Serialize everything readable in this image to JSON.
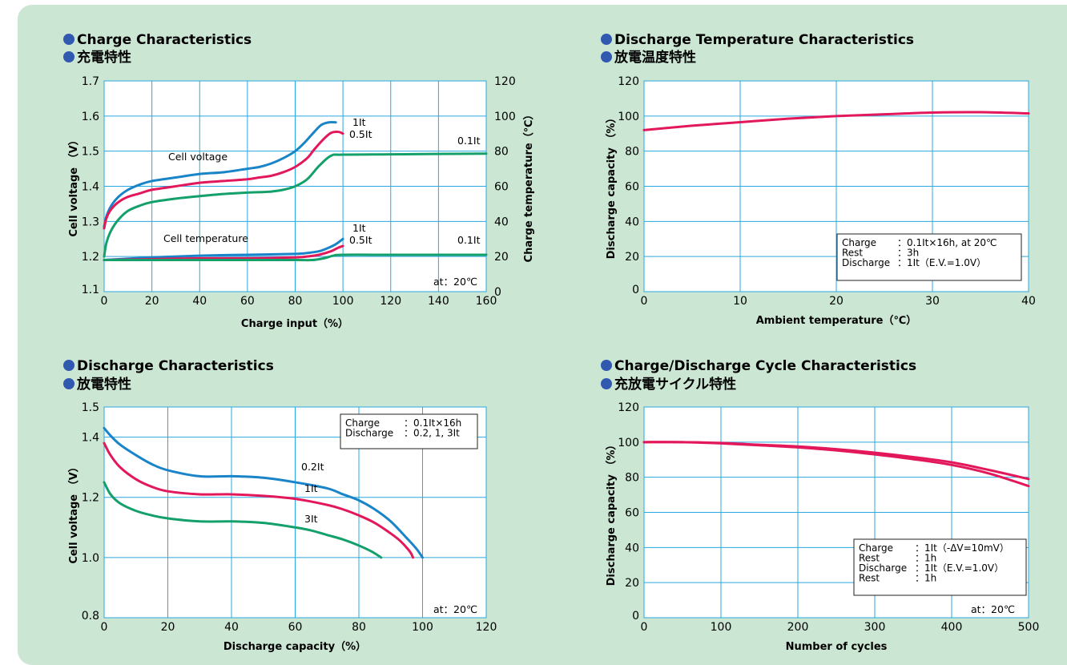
{
  "colors": {
    "panel_bg": "#cbe6d3",
    "plot_bg": "#ffffff",
    "grid": "#2aa8e0",
    "bullet": "#3259b0",
    "series_1it": "#1a84c8",
    "series_05it": "#e3185a",
    "series_01it": "#14a06a",
    "series_02it": "#1a84c8",
    "series_3it": "#14a06a",
    "series_red": "#e3185a"
  },
  "chart_data": [
    {
      "id": "charge",
      "type": "line",
      "title": "Charge Characteristics",
      "subtitle": "充電特性",
      "xlabel": "Charge input（%）",
      "ylabel": "Cell voltage （V）",
      "y2label": "Charge temperature（℃）",
      "xlim": [
        0,
        160
      ],
      "ylim": [
        1.1,
        1.7
      ],
      "y2lim": [
        0,
        120
      ],
      "xticks": [
        "0",
        "20",
        "40",
        "60",
        "80",
        "100",
        "120",
        "140",
        "160"
      ],
      "yticks": [
        "1.1",
        "1.2",
        "1.3",
        "1.4",
        "1.5",
        "1.6",
        "1.7"
      ],
      "y2ticks": [
        "0",
        "20",
        "40",
        "60",
        "80",
        "100",
        "120"
      ],
      "grid": true,
      "labels": {
        "cell_voltage": "Cell voltage",
        "cell_temperature": "Cell temperature",
        "v_1it": "1It",
        "v_05it": "0.5It",
        "v_01it": "0.1It",
        "t_1it": "1It",
        "t_05it": "0.5It",
        "t_01it": "0.1It",
        "at": "at：20℃"
      },
      "series": [
        {
          "name": "1It",
          "axis": "voltage",
          "color": "#1a84c8",
          "x": [
            0,
            1,
            3,
            6,
            10,
            15,
            20,
            30,
            40,
            50,
            60,
            65,
            70,
            75,
            80,
            84,
            88,
            91,
            94,
            97
          ],
          "y": [
            1.285,
            1.315,
            1.345,
            1.37,
            1.39,
            1.405,
            1.415,
            1.425,
            1.435,
            1.44,
            1.45,
            1.455,
            1.465,
            1.48,
            1.5,
            1.525,
            1.555,
            1.575,
            1.582,
            1.582
          ]
        },
        {
          "name": "0.5It",
          "axis": "voltage",
          "color": "#e3185a",
          "x": [
            0,
            1,
            3,
            6,
            10,
            15,
            20,
            30,
            40,
            50,
            60,
            65,
            70,
            75,
            80,
            85,
            88,
            92,
            95,
            98,
            100
          ],
          "y": [
            1.28,
            1.31,
            1.335,
            1.355,
            1.37,
            1.38,
            1.39,
            1.4,
            1.41,
            1.415,
            1.42,
            1.425,
            1.43,
            1.44,
            1.455,
            1.48,
            1.505,
            1.535,
            1.552,
            1.555,
            1.55
          ]
        },
        {
          "name": "0.1It",
          "axis": "voltage",
          "color": "#14a06a",
          "x": [
            0,
            1,
            3,
            6,
            10,
            15,
            20,
            30,
            40,
            50,
            60,
            70,
            75,
            80,
            85,
            90,
            95,
            100,
            120,
            140,
            160
          ],
          "y": [
            1.2,
            1.24,
            1.275,
            1.305,
            1.33,
            1.345,
            1.355,
            1.365,
            1.372,
            1.378,
            1.382,
            1.385,
            1.39,
            1.4,
            1.42,
            1.458,
            1.487,
            1.49,
            1.491,
            1.492,
            1.493
          ]
        },
        {
          "name": "1It",
          "axis": "temperature",
          "color": "#1a84c8",
          "x": [
            0,
            20,
            40,
            60,
            80,
            85,
            90,
            94,
            97,
            100
          ],
          "y": [
            18,
            19.5,
            20.5,
            21,
            21.5,
            22,
            23,
            25,
            27,
            30
          ]
        },
        {
          "name": "0.5It",
          "axis": "temperature",
          "color": "#e3185a",
          "x": [
            0,
            20,
            40,
            60,
            80,
            85,
            90,
            95,
            98,
            100
          ],
          "y": [
            18,
            18.5,
            19,
            19,
            19.5,
            20,
            21,
            23,
            25,
            26
          ]
        },
        {
          "name": "0.1It",
          "axis": "temperature",
          "color": "#14a06a",
          "x": [
            0,
            20,
            40,
            60,
            80,
            87,
            92,
            96,
            100,
            120,
            140,
            160
          ],
          "y": [
            18,
            18,
            18,
            18,
            18,
            18,
            19,
            20.5,
            21,
            21,
            21,
            21
          ]
        }
      ]
    },
    {
      "id": "discharge_temp",
      "type": "line",
      "title": "Discharge Temperature Characteristics",
      "subtitle": "放電温度特性",
      "xlabel": "Ambient temperature（℃）",
      "ylabel": "Discharge capacity （%）",
      "xlim": [
        0,
        40
      ],
      "ylim": [
        0,
        120
      ],
      "xticks": [
        "0",
        "10",
        "20",
        "30",
        "40"
      ],
      "yticks": [
        "0",
        "20",
        "40",
        "60",
        "80",
        "100",
        "120"
      ],
      "grid": true,
      "note": [
        {
          "k": "Charge",
          "v": "：0.1It×16h, at 20℃"
        },
        {
          "k": "Rest",
          "v": "：3h"
        },
        {
          "k": "Discharge",
          "v": "：1It（E.V.=1.0V）"
        }
      ],
      "series": [
        {
          "name": "",
          "color": "#e3185a",
          "x": [
            0,
            5,
            10,
            15,
            20,
            25,
            30,
            35,
            40
          ],
          "y": [
            92,
            94.5,
            96.5,
            98.5,
            100,
            101,
            102,
            102.2,
            101.5
          ]
        }
      ]
    },
    {
      "id": "discharge",
      "type": "line",
      "title": "Discharge Characteristics",
      "subtitle": "放電特性",
      "xlabel": "Discharge capacity（%）",
      "ylabel": "Cell voltage （V）",
      "xlim": [
        0,
        120
      ],
      "ylim": [
        0.8,
        1.5
      ],
      "xticks": [
        "0",
        "20",
        "40",
        "60",
        "80",
        "100",
        "120"
      ],
      "yticks": [
        "0.8",
        "1.0",
        "1.2",
        "1.4",
        "1.5"
      ],
      "ytick_values": [
        0.8,
        1.0,
        1.2,
        1.4,
        1.5
      ],
      "xgrid": [
        0,
        20,
        40,
        60,
        80,
        100,
        120
      ],
      "ygrid": [
        1.0,
        1.2,
        1.4
      ],
      "grid": true,
      "labels": {
        "s02": "0.2It",
        "s1": "1It",
        "s3": "3It",
        "at": "at：20℃"
      },
      "note": [
        {
          "k": "Charge",
          "v": "：0.1It×16h"
        },
        {
          "k": "Discharge",
          "v": "：0.2, 1, 3It"
        }
      ],
      "series": [
        {
          "name": "0.2It",
          "color": "#1a84c8",
          "x": [
            0,
            2,
            5,
            10,
            15,
            20,
            30,
            40,
            50,
            60,
            70,
            75,
            80,
            85,
            90,
            95,
            98,
            100
          ],
          "y": [
            1.43,
            1.405,
            1.375,
            1.34,
            1.31,
            1.29,
            1.27,
            1.27,
            1.265,
            1.25,
            1.23,
            1.21,
            1.19,
            1.16,
            1.12,
            1.065,
            1.03,
            1.0
          ]
        },
        {
          "name": "1It",
          "color": "#e3185a",
          "x": [
            0,
            2,
            5,
            10,
            15,
            20,
            30,
            40,
            50,
            60,
            70,
            75,
            80,
            85,
            90,
            93,
            96,
            97
          ],
          "y": [
            1.38,
            1.34,
            1.3,
            1.26,
            1.235,
            1.22,
            1.21,
            1.21,
            1.205,
            1.195,
            1.175,
            1.16,
            1.14,
            1.115,
            1.08,
            1.055,
            1.02,
            1.0
          ]
        },
        {
          "name": "3It",
          "color": "#14a06a",
          "x": [
            0,
            2,
            5,
            10,
            15,
            20,
            30,
            40,
            50,
            60,
            65,
            70,
            75,
            80,
            84,
            87
          ],
          "y": [
            1.25,
            1.21,
            1.18,
            1.155,
            1.14,
            1.13,
            1.12,
            1.12,
            1.115,
            1.1,
            1.09,
            1.075,
            1.06,
            1.04,
            1.02,
            1.0
          ]
        }
      ]
    },
    {
      "id": "cycle",
      "type": "line",
      "title": "Charge/Discharge Cycle Characteristics",
      "subtitle": "充放電サイクル特性",
      "xlabel": "Number of cycles",
      "ylabel": "Discharge capacity （%）",
      "xlim": [
        0,
        500
      ],
      "ylim": [
        0,
        120
      ],
      "xticks": [
        "0",
        "100",
        "200",
        "300",
        "400",
        "500"
      ],
      "yticks": [
        "0",
        "20",
        "40",
        "60",
        "80",
        "100",
        "120"
      ],
      "grid": true,
      "labels": {
        "at": "at：20℃"
      },
      "note": [
        {
          "k": "Charge",
          "v": "：1It（-ΔV=10mV）"
        },
        {
          "k": "Rest",
          "v": "：1h"
        },
        {
          "k": "Discharge",
          "v": "：1It（E.V.=1.0V）"
        },
        {
          "k": "Rest",
          "v": "：1h"
        }
      ],
      "series": [
        {
          "name": "",
          "color": "#e3185a",
          "x": [
            0,
            50,
            100,
            150,
            200,
            250,
            300,
            350,
            400,
            450,
            500
          ],
          "y": [
            100,
            100,
            99.5,
            98.5,
            97.5,
            96,
            94,
            91.5,
            88.5,
            84,
            79
          ]
        },
        {
          "name": "",
          "color": "#e3185a",
          "x": [
            0,
            50,
            100,
            150,
            200,
            250,
            300,
            350,
            400,
            450,
            500
          ],
          "y": [
            100,
            100,
            99.3,
            98.2,
            97,
            95.3,
            93,
            90.3,
            87,
            82,
            75
          ]
        }
      ]
    }
  ]
}
